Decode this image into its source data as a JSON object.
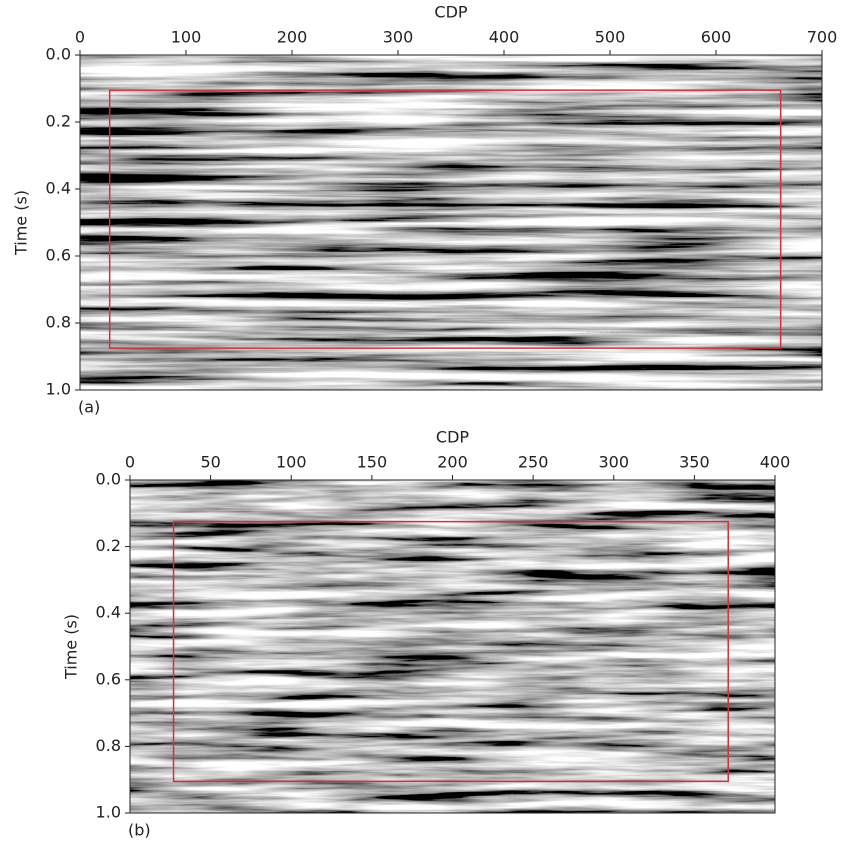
{
  "chart_data": [
    {
      "type": "image",
      "panel_label": "(a)",
      "xlabel": "CDP",
      "ylabel": "Time (s)",
      "xlim": [
        0,
        700
      ],
      "ylim": [
        0,
        1
      ],
      "xticks": [
        0,
        100,
        200,
        300,
        400,
        500,
        600,
        700
      ],
      "yticks": [
        {
          "value": 0,
          "label": "0.0"
        },
        0.2,
        0.4,
        0.6,
        0.8,
        {
          "value": 1,
          "label": "1.0"
        }
      ],
      "box": {
        "x0": 28,
        "x1": 661,
        "y0": 0.105,
        "y1": 0.875,
        "color": "#d0313d"
      }
    },
    {
      "type": "image",
      "panel_label": "(b)",
      "xlabel": "CDP",
      "ylabel": "Time (s)",
      "xlim": [
        0,
        400
      ],
      "ylim": [
        0,
        1
      ],
      "xticks": [
        0,
        50,
        100,
        150,
        200,
        250,
        300,
        350,
        400
      ],
      "yticks": [
        {
          "value": 0,
          "label": "0.0"
        },
        0.2,
        0.4,
        0.6,
        0.8,
        {
          "value": 1,
          "label": "1.0"
        }
      ],
      "box": {
        "x0": 27,
        "x1": 371,
        "y0": 0.125,
        "y1": 0.905,
        "color": "#d0313d"
      }
    }
  ]
}
